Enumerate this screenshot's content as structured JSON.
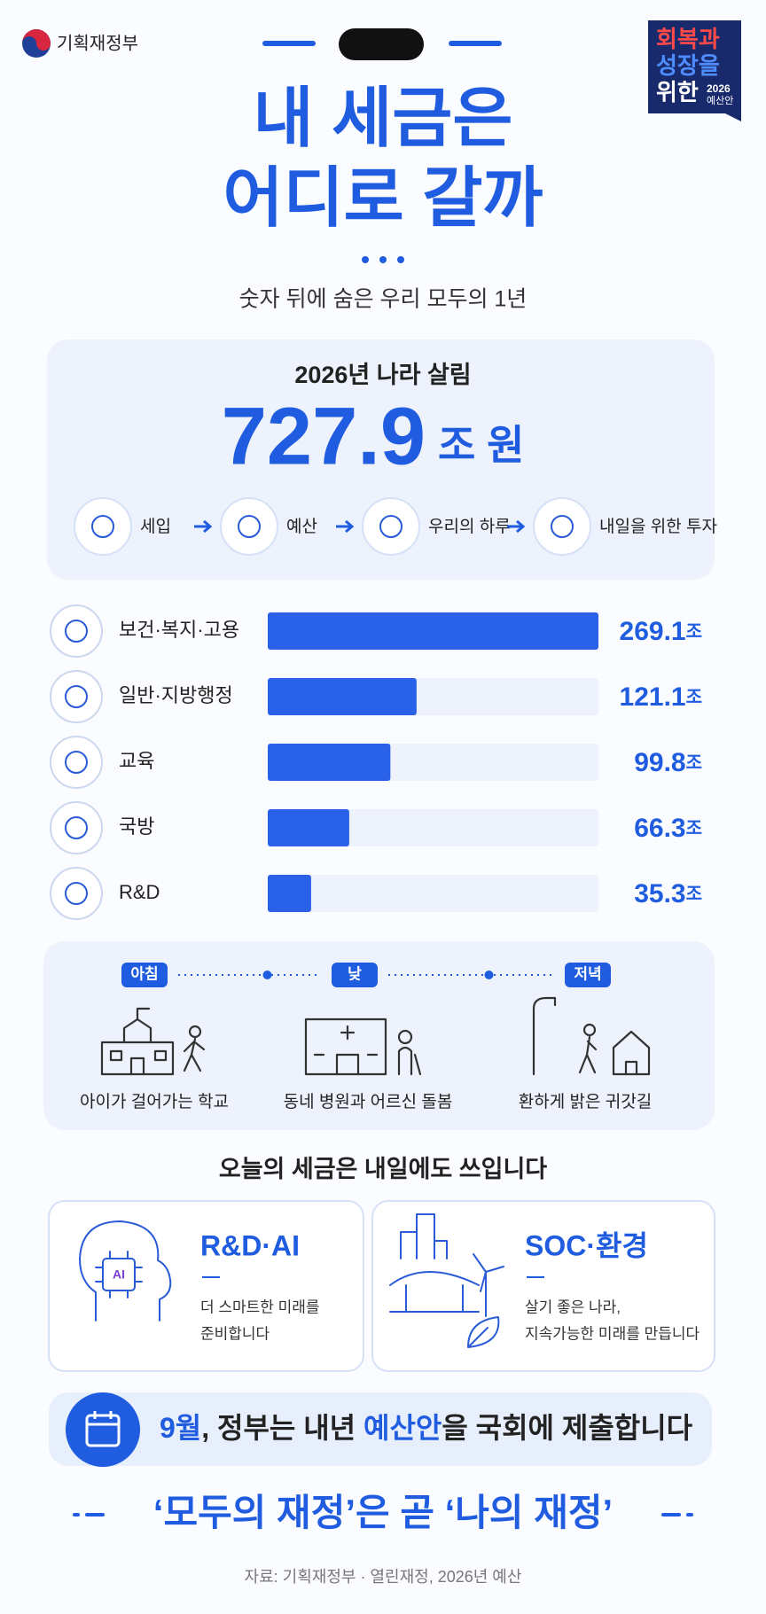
{
  "header": {
    "ministry": "기획재정부",
    "badge": [
      "회복과",
      "성장을",
      "위한"
    ],
    "badge_year": "2026",
    "badge_sub": "예산안"
  },
  "title": [
    "내 세금은",
    "어디로 갈까"
  ],
  "subtitle": "숫자 뒤에 숨은 우리 모두의 1년",
  "total": {
    "label": "2026년 나라 살림",
    "value": 727.9,
    "unit": "조 원"
  },
  "flow": [
    "세입",
    "예산",
    "우리의 하루",
    "내일을 위한 투자"
  ],
  "budget": {
    "unit": "조",
    "items": [
      {
        "name": "보건·복지·고용",
        "value": 269.1
      },
      {
        "name": "일반·지방행정",
        "value": 121.1
      },
      {
        "name": "교육",
        "value": 99.8
      },
      {
        "name": "국방",
        "value": 66.3
      },
      {
        "name": "R&D",
        "value": 35.3
      }
    ]
  },
  "day": {
    "times": [
      "아침",
      "낮",
      "저녁"
    ],
    "scenes": [
      "아이가 걸어가는 학교",
      "동네 병원과 어르신 돌봄",
      "환하게 밝은 귀갓길"
    ]
  },
  "future": {
    "heading": "오늘의 세금은 내일에도 쓰입니다",
    "cards": [
      {
        "title": "R&D·AI",
        "lines": [
          "더 스마트한 미래를",
          "준비합니다"
        ]
      },
      {
        "title": "SOC·환경",
        "lines": [
          "살기 좋은 나라,",
          "지속가능한 미래를 만듭니다"
        ]
      }
    ]
  },
  "notice": [
    "9월",
    ", 정부는 내년 ",
    "예산안",
    "을 국회에 제출합니다"
  ],
  "slogan": "‘모두의 재정’은 곧 ‘나의 재정’",
  "source": "자료: 기획재정부 · 열린재정, 2026년 예산"
}
